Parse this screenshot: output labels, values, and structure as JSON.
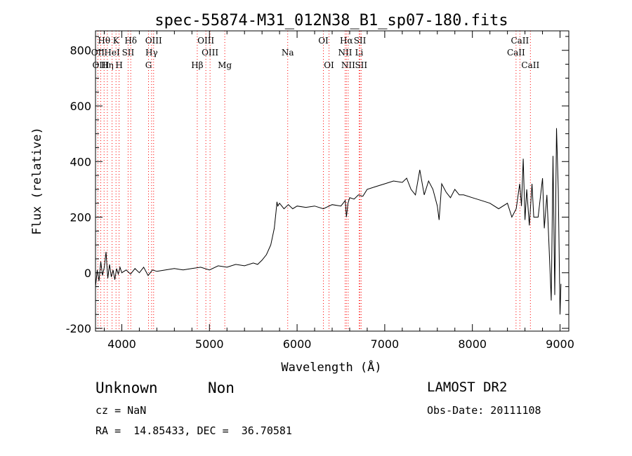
{
  "chart_data": {
    "type": "line",
    "title": "spec-55874-M31_012N38_B1_sp07-180.fits",
    "xlabel": "Wavelength (Å)",
    "ylabel": "Flux (relative)",
    "xlim": [
      3700,
      9100
    ],
    "ylim": [
      -210,
      870
    ],
    "xticks": [
      4000,
      5000,
      6000,
      7000,
      8000,
      9000
    ],
    "yticks": [
      -200,
      0,
      200,
      400,
      600,
      800
    ],
    "grid": false,
    "line_color": "#000000",
    "marker_color": "#ff0000",
    "series": [
      {
        "x": [
          3700,
          3720,
          3740,
          3760,
          3780,
          3800,
          3820,
          3840,
          3860,
          3880,
          3900,
          3920,
          3940,
          3960,
          3980,
          4000,
          4050,
          4100,
          4150,
          4200,
          4250,
          4300,
          4350,
          4400,
          4500,
          4600,
          4700,
          4800,
          4900,
          5000,
          5100,
          5200,
          5300,
          5400,
          5500,
          5550,
          5600,
          5650,
          5700,
          5720,
          5740,
          5760,
          5770,
          5780,
          5800,
          5850,
          5900,
          5950,
          6000,
          6100,
          6200,
          6300,
          6400,
          6500,
          6550,
          6563,
          6580,
          6600,
          6650,
          6700,
          6750,
          6800,
          6900,
          7000,
          7100,
          7200,
          7250,
          7300,
          7350,
          7400,
          7450,
          7500,
          7550,
          7600,
          7620,
          7650,
          7700,
          7750,
          7800,
          7850,
          7900,
          8000,
          8100,
          8200,
          8300,
          8400,
          8450,
          8500,
          8540,
          8560,
          8580,
          8600,
          8620,
          8650,
          8680,
          8700,
          8750,
          8800,
          8820,
          8850,
          8870,
          8900,
          8920,
          8940,
          8960,
          8980,
          9000,
          9010
        ],
        "y": [
          -50,
          10,
          -30,
          40,
          -10,
          20,
          75,
          -20,
          30,
          -15,
          10,
          -25,
          15,
          -5,
          20,
          0,
          10,
          -5,
          15,
          0,
          20,
          -10,
          10,
          5,
          10,
          15,
          10,
          15,
          20,
          10,
          25,
          20,
          30,
          25,
          35,
          30,
          45,
          65,
          100,
          130,
          160,
          220,
          255,
          240,
          250,
          230,
          245,
          230,
          240,
          235,
          240,
          230,
          245,
          240,
          260,
          200,
          250,
          270,
          265,
          280,
          275,
          300,
          310,
          320,
          330,
          325,
          340,
          300,
          280,
          370,
          280,
          330,
          300,
          240,
          190,
          320,
          290,
          270,
          300,
          280,
          280,
          270,
          260,
          250,
          230,
          250,
          200,
          230,
          320,
          240,
          410,
          190,
          300,
          170,
          320,
          200,
          200,
          340,
          160,
          280,
          130,
          -100,
          420,
          -80,
          520,
          300,
          -150,
          -40
        ]
      }
    ],
    "lines": [
      {
        "name": "Hθ",
        "x": 3798,
        "row": 1
      },
      {
        "name": "OII",
        "x": 3727,
        "row": 2
      },
      {
        "name": "OIII",
        "x": 3760,
        "row": 3
      },
      {
        "name": "K",
        "x": 3934,
        "row": 1
      },
      {
        "name": "HeI",
        "x": 3889,
        "row": 2
      },
      {
        "name": "Hη",
        "x": 3835,
        "row": 3
      },
      {
        "name": "H",
        "x": 3969,
        "row": 3
      },
      {
        "name": "SII",
        "x": 4072,
        "row": 2
      },
      {
        "name": "Hδ",
        "x": 4102,
        "row": 1
      },
      {
        "name": "OIII",
        "x": 4363,
        "row": 1
      },
      {
        "name": "Hγ",
        "x": 4340,
        "row": 2
      },
      {
        "name": "G",
        "x": 4305,
        "row": 3
      },
      {
        "name": "OIII",
        "x": 4959,
        "row": 1
      },
      {
        "name": "OIII",
        "x": 5007,
        "row": 2
      },
      {
        "name": "Hβ",
        "x": 4861,
        "row": 3
      },
      {
        "name": "Mg",
        "x": 5175,
        "row": 3
      },
      {
        "name": "Na",
        "x": 5893,
        "row": 2
      },
      {
        "name": "OI",
        "x": 6300,
        "row": 1
      },
      {
        "name": "OI",
        "x": 6364,
        "row": 3
      },
      {
        "name": "Hα",
        "x": 6563,
        "row": 1
      },
      {
        "name": "NII",
        "x": 6548,
        "row": 2
      },
      {
        "name": "NII",
        "x": 6583,
        "row": 3
      },
      {
        "name": "SII",
        "x": 6717,
        "row": 1
      },
      {
        "name": "Li",
        "x": 6708,
        "row": 2
      },
      {
        "name": "SII",
        "x": 6731,
        "row": 3
      },
      {
        "name": "CaII",
        "x": 8542,
        "row": 1
      },
      {
        "name": "CaII",
        "x": 8498,
        "row": 2
      },
      {
        "name": "CaII",
        "x": 8662,
        "row": 3
      }
    ]
  },
  "info": {
    "class_label": "Unknown",
    "subclass_label": "Non",
    "survey": "LAMOST DR2",
    "cz": "cz = NaN",
    "obs_date": "Obs-Date: 20111108",
    "radec": "RA =  14.85433, DEC =  36.70581"
  }
}
